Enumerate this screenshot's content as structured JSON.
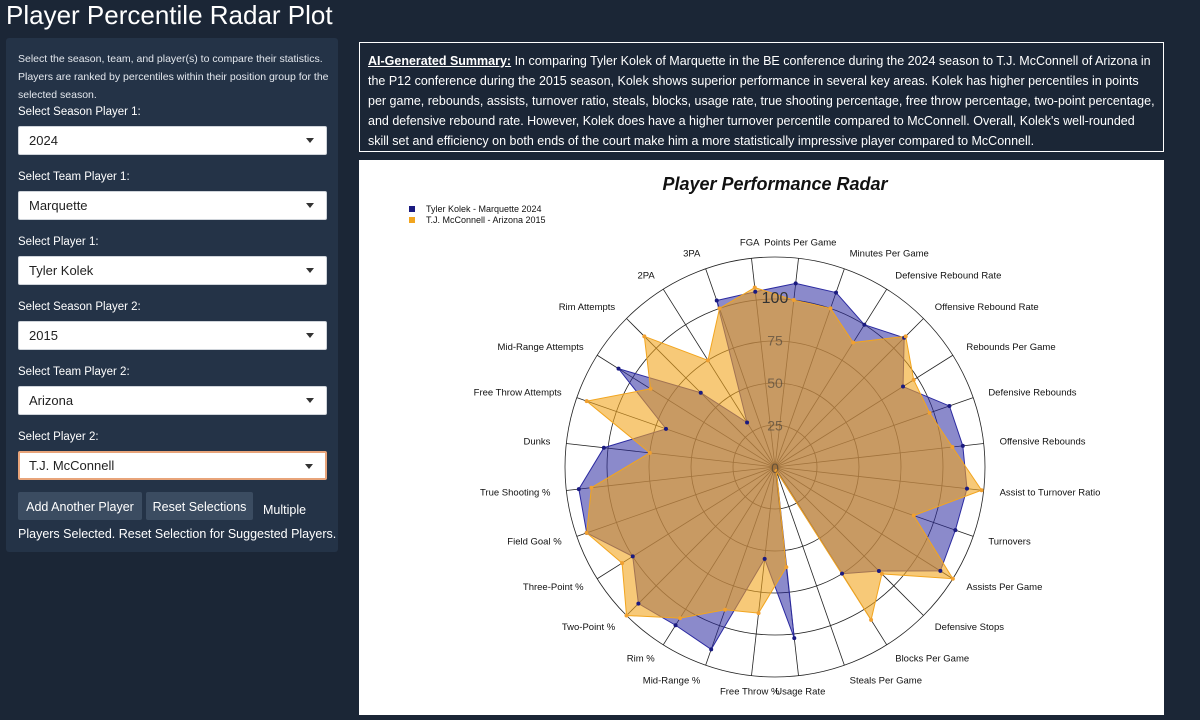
{
  "page_title": "Player Percentile Radar Plot",
  "sidebar": {
    "intro": "Select the season, team, and player(s) to compare their statistics. Players are ranked by percentiles within their position group for the selected season.",
    "controls": [
      {
        "label": "Select Season Player 1:",
        "value": "2024"
      },
      {
        "label": "Select Team Player 1:",
        "value": "Marquette"
      },
      {
        "label": "Select Player 1:",
        "value": "Tyler Kolek"
      },
      {
        "label": "Select Season Player 2:",
        "value": "2015"
      },
      {
        "label": "Select Team Player 2:",
        "value": "Arizona"
      },
      {
        "label": "Select Player 2:",
        "value": "T.J. McConnell"
      }
    ],
    "add_button": "Add Another Player",
    "reset_button": "Reset Selections",
    "note": "Multiple Players Selected. Reset Selection for Suggested Players."
  },
  "summary": {
    "lead": "AI-Generated Summary:",
    "text": " In comparing Tyler Kolek of Marquette in the BE conference during the 2024 season to T.J. McConnell of Arizona in the P12 conference during the 2015 season, Kolek shows superior performance in several key areas. Kolek has higher percentiles in points per game, rebounds, assists, turnover ratio, steals, blocks, usage rate, true shooting percentage, free throw percentage, two-point percentage, and defensive rebound rate. However, Kolek does have a higher turnover percentile compared to McConnell. Overall, Kolek's well-rounded skill set and efficiency on both ends of the court make him a more statistically impressive player compared to McConnell."
  },
  "colors": {
    "player1": "#2b2aa0",
    "player2": "#f2a51e",
    "focus_border": "#e8a47a",
    "page_bg": "#1b2636",
    "sidebar_bg": "#243347"
  },
  "chart_data": {
    "type": "radar",
    "title": "Player Performance Radar",
    "rlim": [
      0,
      100
    ],
    "r_ticks": [
      "0",
      "25",
      "50",
      "75",
      "100"
    ],
    "legend_position": "top-left",
    "categories": [
      "Points Per Game",
      "Minutes Per Game",
      "Defensive Rebound Rate",
      "Offensive Rebound Rate",
      "Rebounds Per Game",
      "Defensive Rebounds",
      "Offensive Rebounds",
      "Assist to Turnover Ratio",
      "Turnovers",
      "Assists Per Game",
      "Defensive Stops",
      "Blocks Per Game",
      "Steals Per Game",
      "Usage Rate",
      "Free Throw %",
      "Mid-Range %",
      "Rim %",
      "Two-Point %",
      "Three-Point %",
      "Field Goal %",
      "True Shooting %",
      "Dunks",
      "Free Throw Attempts",
      "Mid-Range Attempts",
      "Rim Attempts",
      "2PA",
      "3PA",
      "FGA"
    ],
    "series": [
      {
        "name": "Tyler Kolek - Marquette 2024",
        "values": [
          88,
          88,
          80,
          87,
          72,
          88,
          90,
          92,
          91,
          93,
          70,
          60,
          2,
          82,
          44,
          92,
          89,
          92,
          80,
          95,
          94,
          82,
          55,
          88,
          50,
          25,
          84,
          84
        ]
      },
      {
        "name": "T.J. McConnell - Arizona 2015",
        "values": [
          80,
          80,
          70,
          88,
          78,
          78,
          85,
          99,
          70,
          100,
          72,
          86,
          2,
          48,
          70,
          72,
          85,
          100,
          86,
          95,
          88,
          60,
          95,
          70,
          88,
          60,
          80,
          86
        ]
      }
    ]
  }
}
